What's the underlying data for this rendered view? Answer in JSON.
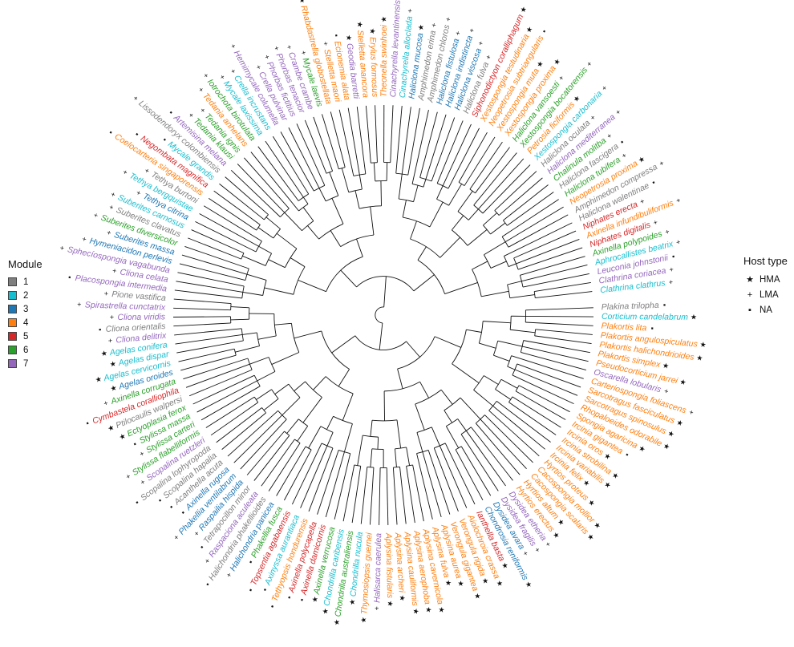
{
  "module_legend": {
    "title": "Module",
    "items": [
      {
        "label": "1",
        "color": "#7f7f7f"
      },
      {
        "label": "2",
        "color": "#17becf"
      },
      {
        "label": "3",
        "color": "#1f77b4"
      },
      {
        "label": "4",
        "color": "#ff7f0e"
      },
      {
        "label": "5",
        "color": "#d62728"
      },
      {
        "label": "6",
        "color": "#2ca02c"
      },
      {
        "label": "7",
        "color": "#9467bd"
      }
    ]
  },
  "host_legend": {
    "title": "Host type",
    "items": [
      {
        "symbol": "★",
        "label": "HMA"
      },
      {
        "symbol": "+",
        "label": "LMA"
      },
      {
        "symbol": "▪",
        "label": "NA"
      }
    ]
  },
  "tips": [
    {
      "name": "Plakina trilopha",
      "module": "1",
      "host": "NA"
    },
    {
      "name": "Corticium candelabrum",
      "module": "2",
      "host": "HMA"
    },
    {
      "name": "Plakortis lita",
      "module": "4",
      "host": "NA"
    },
    {
      "name": "Plakortis angulospiculatus",
      "module": "4",
      "host": "HMA"
    },
    {
      "name": "Plakortis halichondrioides",
      "module": "4",
      "host": "HMA"
    },
    {
      "name": "Plakortis simplex",
      "module": "4",
      "host": "HMA"
    },
    {
      "name": "Pseudocorticium jarrei",
      "module": "4",
      "host": "HMA"
    },
    {
      "name": "Oscarella lobularis",
      "module": "7",
      "host": "LMA"
    },
    {
      "name": "Carteriospongia foliascens",
      "module": "4",
      "host": "LMA"
    },
    {
      "name": "Sarcotragus fasciculatus",
      "module": "4",
      "host": "HMA"
    },
    {
      "name": "Sarcotragus spinosulus",
      "module": "4",
      "host": "HMA"
    },
    {
      "name": "Rhopaloeides odorabile",
      "module": "4",
      "host": "HMA"
    },
    {
      "name": "Spongia agaricina",
      "module": "4",
      "host": "HMA"
    },
    {
      "name": "Ircinia gigantea",
      "module": "4",
      "host": "NA"
    },
    {
      "name": "Ircinia oros",
      "module": "4",
      "host": "HMA"
    },
    {
      "name": "Ircinia strobilina",
      "module": "4",
      "host": "HMA"
    },
    {
      "name": "Ircinia variabilis",
      "module": "4",
      "host": "HMA"
    },
    {
      "name": "Ircinia felix",
      "module": "4",
      "host": "HMA"
    },
    {
      "name": "Hyrtios proteus",
      "module": "4",
      "host": "HMA"
    },
    {
      "name": "Cacospongia mollior",
      "module": "4",
      "host": "HMA"
    },
    {
      "name": "Cacospongia scalaris",
      "module": "4",
      "host": "HMA"
    },
    {
      "name": "Hyrtios altum",
      "module": "4",
      "host": "HMA"
    },
    {
      "name": "Hyrtios erectus",
      "module": "4",
      "host": "HMA"
    },
    {
      "name": "Dysidea etheria",
      "module": "7",
      "host": "LMA"
    },
    {
      "name": "Dysidea fragilis",
      "module": "7",
      "host": "LMA"
    },
    {
      "name": "Dysidea avara",
      "module": "3",
      "host": "LMA"
    },
    {
      "name": "Chondrosia reniformis",
      "module": "3",
      "host": "HMA"
    },
    {
      "name": "Ianthella basta",
      "module": "5",
      "host": "HMA"
    },
    {
      "name": "Aiolochroia crassa",
      "module": "4",
      "host": "HMA"
    },
    {
      "name": "Verongula rigida",
      "module": "4",
      "host": "HMA"
    },
    {
      "name": "Verongula gigantea",
      "module": "4",
      "host": "HMA"
    },
    {
      "name": "Aplysina aurea",
      "module": "4",
      "host": "HMA"
    },
    {
      "name": "Aplysina fulva",
      "module": "4",
      "host": "HMA"
    },
    {
      "name": "Aplysina cavernicola",
      "module": "4",
      "host": "HMA"
    },
    {
      "name": "Aplysina aerophoba",
      "module": "4",
      "host": "HMA"
    },
    {
      "name": "Aplysina cauliformis",
      "module": "4",
      "host": "HMA"
    },
    {
      "name": "Aplysina archeri",
      "module": "4",
      "host": "HMA"
    },
    {
      "name": "Aplysina fistularis",
      "module": "4",
      "host": "HMA"
    },
    {
      "name": "Halisarca caerulea",
      "module": "7",
      "host": "LMA"
    },
    {
      "name": "Thymosiopsis guernei",
      "module": "4",
      "host": "HMA"
    },
    {
      "name": "Chondrilla nucula",
      "module": "2",
      "host": "HMA"
    },
    {
      "name": "Chondrilla australiensis",
      "module": "6",
      "host": "HMA"
    },
    {
      "name": "Chondrilla caribensis",
      "module": "2",
      "host": "HMA"
    },
    {
      "name": "Axinella verrucosa",
      "module": "6",
      "host": "HMA"
    },
    {
      "name": "Axinella damicornis",
      "module": "5",
      "host": "NA"
    },
    {
      "name": "Axinella polycapella",
      "module": "5",
      "host": "NA"
    },
    {
      "name": "Tethyopsis hondurensis",
      "module": "4",
      "host": "NA"
    },
    {
      "name": "Axinyssa aurantiaca",
      "module": "2",
      "host": "NA"
    },
    {
      "name": "Topsentia agabaensis",
      "module": "5",
      "host": "NA"
    },
    {
      "name": "Phakellia fusca",
      "module": "6",
      "host": "NA"
    },
    {
      "name": "Halichondria panicea",
      "module": "3",
      "host": "LMA"
    },
    {
      "name": "Halichondria phakellioides",
      "module": "1",
      "host": "NA"
    },
    {
      "name": "Raspaciona aculeata",
      "module": "7",
      "host": "LMA"
    },
    {
      "name": "Tetrapocillon minor",
      "module": "1",
      "host": "NA"
    },
    {
      "name": "Raspailia hispida",
      "module": "3",
      "host": "LMA"
    },
    {
      "name": "Phakellia ventilabrum",
      "module": "3",
      "host": "LMA"
    },
    {
      "name": "Axinella rugosa",
      "module": "3",
      "host": "NA"
    },
    {
      "name": "Acanthella acuta",
      "module": "1",
      "host": "NA"
    },
    {
      "name": "Scopalina hapalia",
      "module": "1",
      "host": "NA"
    },
    {
      "name": "Scopalina lophyropoda",
      "module": "1",
      "host": "NA"
    },
    {
      "name": "Scopalina ruetzleri",
      "module": "7",
      "host": "LMA"
    },
    {
      "name": "Stylissa flabelliformis",
      "module": "6",
      "host": "LMA"
    },
    {
      "name": "Stylissa carteri",
      "module": "6",
      "host": "LMA"
    },
    {
      "name": "Stylissa massa",
      "module": "6",
      "host": "NA"
    },
    {
      "name": "Ectyoplasia ferox",
      "module": "6",
      "host": "HMA"
    },
    {
      "name": "Ptilocaulis walpersi",
      "module": "1",
      "host": "HMA"
    },
    {
      "name": "Cymbastela coralliophila",
      "module": "5",
      "host": "NA"
    },
    {
      "name": "Axinella corrugata",
      "module": "6",
      "host": "LMA"
    },
    {
      "name": "Agelas oroides",
      "module": "3",
      "host": "HMA"
    },
    {
      "name": "Agelas cervicornis",
      "module": "2",
      "host": "HMA"
    },
    {
      "name": "Agelas dispar",
      "module": "2",
      "host": "HMA"
    },
    {
      "name": "Agelas conifera",
      "module": "2",
      "host": "HMA"
    },
    {
      "name": "Cliona delitrix",
      "module": "7",
      "host": "LMA"
    },
    {
      "name": "Cliona orientalis",
      "module": "1",
      "host": "NA"
    },
    {
      "name": "Cliona viridis",
      "module": "7",
      "host": "LMA"
    },
    {
      "name": "Spirastrella cunctatrix",
      "module": "7",
      "host": "LMA"
    },
    {
      "name": "Pione vastifica",
      "module": "1",
      "host": "LMA"
    },
    {
      "name": "Placospongia intermedia",
      "module": "7",
      "host": "NA"
    },
    {
      "name": "Cliona celata",
      "module": "7",
      "host": "LMA"
    },
    {
      "name": "Sphecíospongia vagabunda",
      "module": "7",
      "host": "LMA"
    },
    {
      "name": "Hymeniacidon perlevis",
      "module": "3",
      "host": "LMA"
    },
    {
      "name": "Suberites massa",
      "module": "3",
      "host": "LMA"
    },
    {
      "name": "Suberites diversicolor",
      "module": "6",
      "host": "LMA"
    },
    {
      "name": "Suberites clavatus",
      "module": "1",
      "host": "LMA"
    },
    {
      "name": "Suberites carnosus",
      "module": "2",
      "host": "LMA"
    },
    {
      "name": "Tethya citrina",
      "module": "3",
      "host": "LMA"
    },
    {
      "name": "Tethya bergquistae",
      "module": "2",
      "host": "LMA"
    },
    {
      "name": "Tethya burtoni",
      "module": "1",
      "host": "LMA"
    },
    {
      "name": "Coelocarteria singaporensis",
      "module": "4",
      "host": "NA"
    },
    {
      "name": "Negombata magnifica",
      "module": "5",
      "host": "NA"
    },
    {
      "name": "Mycale grandis",
      "module": "2",
      "host": "NA"
    },
    {
      "name": "Lissodendoryx colombiensis",
      "module": "1",
      "host": "LMA"
    },
    {
      "name": "Artemisina melana",
      "module": "7",
      "host": "NA"
    },
    {
      "name": "Tedania klausi",
      "module": "6",
      "host": "LMA"
    },
    {
      "name": "Tedania ignis",
      "module": "6",
      "host": "LMA"
    },
    {
      "name": "Tedania anhelans",
      "module": "4",
      "host": "LMA"
    },
    {
      "name": "Iotrochota birotulata",
      "module": "6",
      "host": "LMA"
    },
    {
      "name": "Mycale laxissima",
      "module": "2",
      "host": "LMA"
    },
    {
      "name": "Crella incrustans",
      "module": "2",
      "host": "LMA"
    },
    {
      "name": "Hemimycale columella",
      "module": "7",
      "host": "LMA"
    },
    {
      "name": "Crella pulvinar",
      "module": "7",
      "host": "LMA"
    },
    {
      "name": "Phorbas fictitius",
      "module": "7",
      "host": "LMA"
    },
    {
      "name": "Phorbas tenacior",
      "module": "7",
      "host": "LMA"
    },
    {
      "name": "Crambe crambe",
      "module": "7",
      "host": "LMA"
    },
    {
      "name": "Mycale laevis",
      "module": "6",
      "host": "LMA"
    },
    {
      "name": "Rhabdastrella globostellata",
      "module": "4",
      "host": "HMA"
    },
    {
      "name": "Stelletta maori",
      "module": "4",
      "host": "LMA"
    },
    {
      "name": "Ecionemia alata",
      "module": "4",
      "host": "NA"
    },
    {
      "name": "Geodia barretti",
      "module": "7",
      "host": "HMA"
    },
    {
      "name": "Stelletta anancora",
      "module": "4",
      "host": "HMA"
    },
    {
      "name": "Erylus formosus",
      "module": "4",
      "host": "HMA"
    },
    {
      "name": "Theonella swinhoei",
      "module": "4",
      "host": "HMA"
    },
    {
      "name": "Cinachyrella levantinensis",
      "module": "7",
      "host": "LMA"
    },
    {
      "name": "Cinachyrella alloclada",
      "module": "2",
      "host": "LMA"
    },
    {
      "name": "Haliclona mucosa",
      "module": "3",
      "host": "HMA"
    },
    {
      "name": "Amphimedon erina",
      "module": "1",
      "host": "LMA"
    },
    {
      "name": "Amphimedon chloros",
      "module": "1",
      "host": "LMA"
    },
    {
      "name": "Haliclona fistulosa",
      "module": "3",
      "host": "LMA"
    },
    {
      "name": "Haliclona indistincta",
      "module": "3",
      "host": "LMA"
    },
    {
      "name": "Haliclona viscosa",
      "module": "3",
      "host": "LMA"
    },
    {
      "name": "Haliclona fulva",
      "module": "1",
      "host": "LMA"
    },
    {
      "name": "Siphonodictyon coralliphagum",
      "module": "5",
      "host": "HMA"
    },
    {
      "name": "Xestospongia testudinaria",
      "module": "4",
      "host": "HMA"
    },
    {
      "name": "Neopetrosia subtriangularis",
      "module": "4",
      "host": "NA"
    },
    {
      "name": "Xestospongia muta",
      "module": "4",
      "host": "HMA"
    },
    {
      "name": "Xestospongia proxima",
      "module": "4",
      "host": "HMA"
    },
    {
      "name": "Haliclona vansoesti",
      "module": "6",
      "host": "LMA"
    },
    {
      "name": "Xestospongia bocatorensis",
      "module": "6",
      "host": "LMA"
    },
    {
      "name": "Petrosia ficiformis",
      "module": "4",
      "host": "HMA"
    },
    {
      "name": "Xestospongia carbonaria",
      "module": "2",
      "host": "LMA"
    },
    {
      "name": "Haliclona oculata",
      "module": "1",
      "host": "LMA"
    },
    {
      "name": "Haliclona mediterranea",
      "module": "7",
      "host": "LMA"
    },
    {
      "name": "Chalinula molitba",
      "module": "6",
      "host": "LMA"
    },
    {
      "name": "Haliclona fascigera",
      "module": "1",
      "host": "NA"
    },
    {
      "name": "Haliclona tubifera",
      "module": "6",
      "host": "LMA"
    },
    {
      "name": "Neopetrosia proxima",
      "module": "4",
      "host": "HMA"
    },
    {
      "name": "Amphimedon compressa",
      "module": "1",
      "host": "LMA"
    },
    {
      "name": "Haliclona walentinae",
      "module": "1",
      "host": "NA"
    },
    {
      "name": "Niphates erecta",
      "module": "5",
      "host": "LMA"
    },
    {
      "name": "Axinella infundibuliformis",
      "module": "4",
      "host": "LMA"
    },
    {
      "name": "Niphates digitalis",
      "module": "5",
      "host": "LMA"
    },
    {
      "name": "Axinella polypoides",
      "module": "6",
      "host": "LMA"
    },
    {
      "name": "Aphrocallistes beatrix",
      "module": "2",
      "host": "LMA"
    },
    {
      "name": "Leuconia johnstonii",
      "module": "7",
      "host": "NA"
    },
    {
      "name": "Clathrina coriacea",
      "module": "7",
      "host": "LMA"
    },
    {
      "name": "Clathrina clathrus",
      "module": "2",
      "host": "LMA"
    }
  ]
}
